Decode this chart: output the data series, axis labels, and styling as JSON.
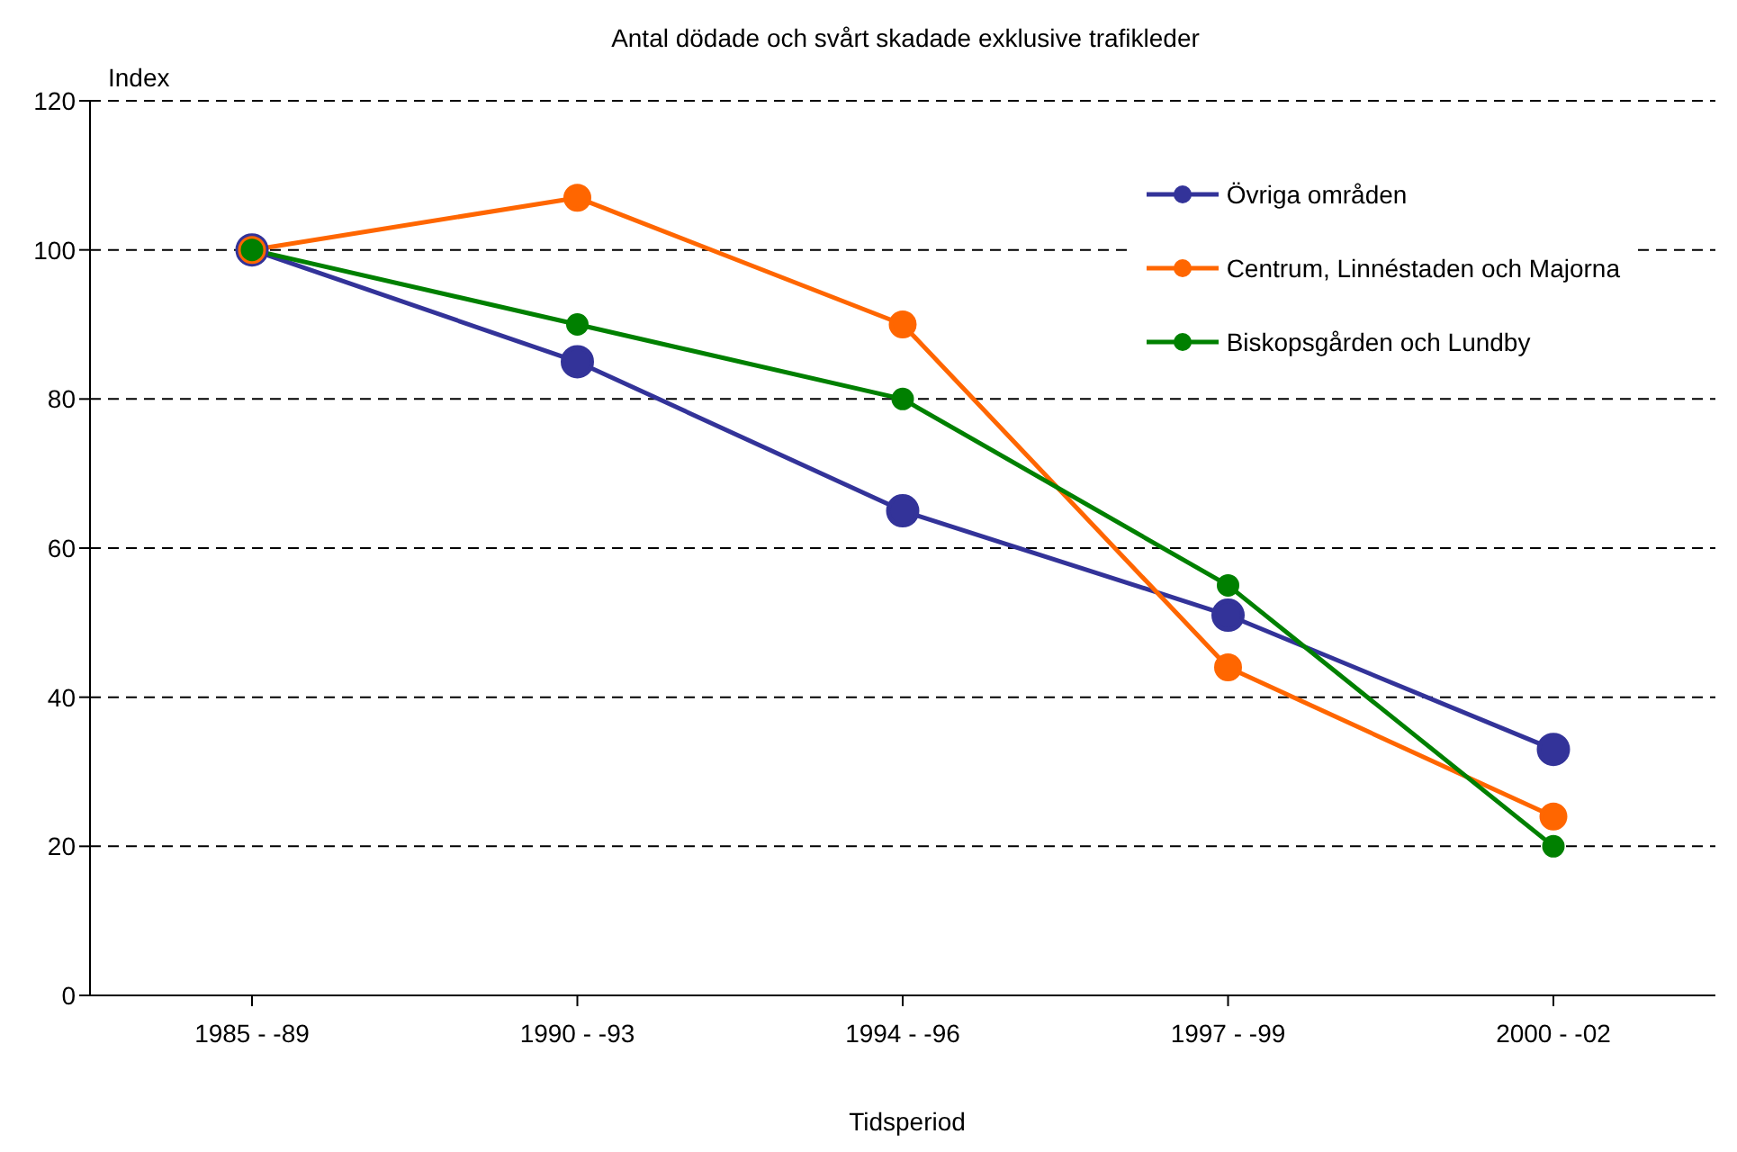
{
  "chart_data": {
    "type": "line",
    "title": "Antal dödade och svårt skadade exklusive trafikleder",
    "xlabel": "Tidsperiod",
    "ylabel": "Index",
    "categories": [
      "1985 - -89",
      "1990 - -93",
      "1994 - -96",
      "1997 - -99",
      "2000 - -02"
    ],
    "series": [
      {
        "name": "Övriga områden",
        "color": "#333399",
        "values": [
          100,
          85,
          65,
          51,
          33
        ]
      },
      {
        "name": "Centrum, Linnéstaden och Majorna",
        "color": "#ff6600",
        "values": [
          100,
          107,
          90,
          44,
          24
        ]
      },
      {
        "name": "Biskopsgården och Lundby",
        "color": "#008000",
        "values": [
          100,
          90,
          80,
          55,
          20
        ]
      }
    ],
    "ylim": [
      0,
      120
    ],
    "yticks": [
      0,
      20,
      40,
      60,
      80,
      100,
      120
    ],
    "grid": "y",
    "legend": "top right",
    "marker": "circle",
    "line_style": "solid"
  }
}
